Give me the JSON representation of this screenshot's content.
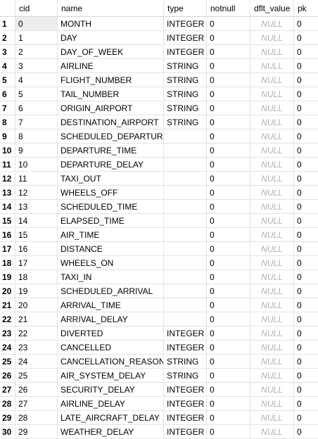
{
  "columns": [
    "cid",
    "name",
    "type",
    "notnull",
    "dflt_value",
    "pk"
  ],
  "rows": [
    {
      "rn": "1",
      "cid": "0",
      "name": "MONTH",
      "type": "INTEGER",
      "notnull": "0",
      "dflt": "NULL",
      "pk": "0"
    },
    {
      "rn": "2",
      "cid": "1",
      "name": "DAY",
      "type": "INTEGER",
      "notnull": "0",
      "dflt": "NULL",
      "pk": "0"
    },
    {
      "rn": "3",
      "cid": "2",
      "name": "DAY_OF_WEEK",
      "type": "INTEGER",
      "notnull": "0",
      "dflt": "NULL",
      "pk": "0"
    },
    {
      "rn": "4",
      "cid": "3",
      "name": "AIRLINE",
      "type": "STRING",
      "notnull": "0",
      "dflt": "NULL",
      "pk": "0"
    },
    {
      "rn": "5",
      "cid": "4",
      "name": "FLIGHT_NUMBER",
      "type": "STRING",
      "notnull": "0",
      "dflt": "NULL",
      "pk": "0"
    },
    {
      "rn": "6",
      "cid": "5",
      "name": "TAIL_NUMBER",
      "type": "STRING",
      "notnull": "0",
      "dflt": "NULL",
      "pk": "0"
    },
    {
      "rn": "7",
      "cid": "6",
      "name": "ORIGIN_AIRPORT",
      "type": "STRING",
      "notnull": "0",
      "dflt": "NULL",
      "pk": "0"
    },
    {
      "rn": "8",
      "cid": "7",
      "name": "DESTINATION_AIRPORT",
      "type": "STRING",
      "notnull": "0",
      "dflt": "NULL",
      "pk": "0"
    },
    {
      "rn": "9",
      "cid": "8",
      "name": "SCHEDULED_DEPARTURE",
      "type": "",
      "notnull": "0",
      "dflt": "NULL",
      "pk": "0"
    },
    {
      "rn": "10",
      "cid": "9",
      "name": "DEPARTURE_TIME",
      "type": "",
      "notnull": "0",
      "dflt": "NULL",
      "pk": "0"
    },
    {
      "rn": "11",
      "cid": "10",
      "name": "DEPARTURE_DELAY",
      "type": "",
      "notnull": "0",
      "dflt": "NULL",
      "pk": "0"
    },
    {
      "rn": "12",
      "cid": "11",
      "name": "TAXI_OUT",
      "type": "",
      "notnull": "0",
      "dflt": "NULL",
      "pk": "0"
    },
    {
      "rn": "13",
      "cid": "12",
      "name": "WHEELS_OFF",
      "type": "",
      "notnull": "0",
      "dflt": "NULL",
      "pk": "0"
    },
    {
      "rn": "14",
      "cid": "13",
      "name": "SCHEDULED_TIME",
      "type": "",
      "notnull": "0",
      "dflt": "NULL",
      "pk": "0"
    },
    {
      "rn": "15",
      "cid": "14",
      "name": "ELAPSED_TIME",
      "type": "",
      "notnull": "0",
      "dflt": "NULL",
      "pk": "0"
    },
    {
      "rn": "16",
      "cid": "15",
      "name": "AIR_TIME",
      "type": "",
      "notnull": "0",
      "dflt": "NULL",
      "pk": "0"
    },
    {
      "rn": "17",
      "cid": "16",
      "name": "DISTANCE",
      "type": "",
      "notnull": "0",
      "dflt": "NULL",
      "pk": "0"
    },
    {
      "rn": "18",
      "cid": "17",
      "name": "WHEELS_ON",
      "type": "",
      "notnull": "0",
      "dflt": "NULL",
      "pk": "0"
    },
    {
      "rn": "19",
      "cid": "18",
      "name": "TAXI_IN",
      "type": "",
      "notnull": "0",
      "dflt": "NULL",
      "pk": "0"
    },
    {
      "rn": "20",
      "cid": "19",
      "name": "SCHEDULED_ARRIVAL",
      "type": "",
      "notnull": "0",
      "dflt": "NULL",
      "pk": "0"
    },
    {
      "rn": "21",
      "cid": "20",
      "name": "ARRIVAL_TIME",
      "type": "",
      "notnull": "0",
      "dflt": "NULL",
      "pk": "0"
    },
    {
      "rn": "22",
      "cid": "21",
      "name": "ARRIVAL_DELAY",
      "type": "",
      "notnull": "0",
      "dflt": "NULL",
      "pk": "0"
    },
    {
      "rn": "23",
      "cid": "22",
      "name": "DIVERTED",
      "type": "INTEGER",
      "notnull": "0",
      "dflt": "NULL",
      "pk": "0"
    },
    {
      "rn": "24",
      "cid": "23",
      "name": "CANCELLED",
      "type": "INTEGER",
      "notnull": "0",
      "dflt": "NULL",
      "pk": "0"
    },
    {
      "rn": "25",
      "cid": "24",
      "name": "CANCELLATION_REASON",
      "type": "STRING",
      "notnull": "0",
      "dflt": "NULL",
      "pk": "0"
    },
    {
      "rn": "26",
      "cid": "25",
      "name": "AIR_SYSTEM_DELAY",
      "type": "STRING",
      "notnull": "0",
      "dflt": "NULL",
      "pk": "0"
    },
    {
      "rn": "27",
      "cid": "26",
      "name": "SECURITY_DELAY",
      "type": "INTEGER",
      "notnull": "0",
      "dflt": "NULL",
      "pk": "0"
    },
    {
      "rn": "28",
      "cid": "27",
      "name": "AIRLINE_DELAY",
      "type": "INTEGER",
      "notnull": "0",
      "dflt": "NULL",
      "pk": "0"
    },
    {
      "rn": "29",
      "cid": "28",
      "name": "LATE_AIRCRAFT_DELAY",
      "type": "INTEGER",
      "notnull": "0",
      "dflt": "NULL",
      "pk": "0"
    },
    {
      "rn": "30",
      "cid": "29",
      "name": "WEATHER_DELAY",
      "type": "INTEGER",
      "notnull": "0",
      "dflt": "NULL",
      "pk": "0"
    }
  ]
}
